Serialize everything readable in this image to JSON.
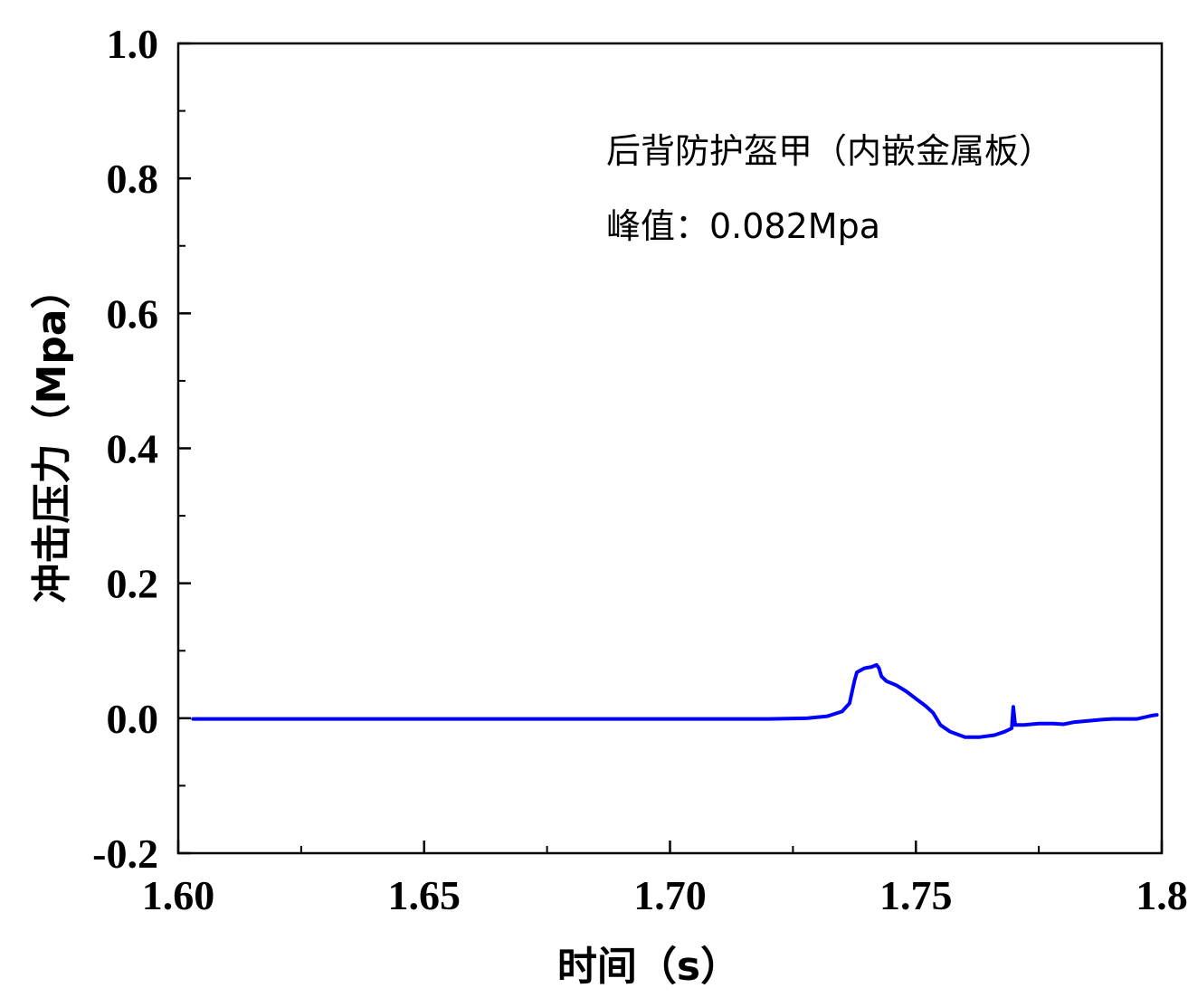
{
  "chart_data": {
    "type": "line",
    "title": "",
    "xlabel": "时间（s）",
    "ylabel": "冲击压力（Mpa）",
    "xlim": [
      1.6,
      1.8
    ],
    "ylim": [
      -0.2,
      1.0
    ],
    "xticks": [
      1.6,
      1.65,
      1.7,
      1.75,
      1.8
    ],
    "xtick_labels": [
      "1.60",
      "1.65",
      "1.70",
      "1.75",
      "1.8"
    ],
    "yticks": [
      -0.2,
      0.0,
      0.2,
      0.4,
      0.6,
      0.8,
      1.0
    ],
    "ytick_labels": [
      "-0.2",
      "0.0",
      "0.2",
      "0.4",
      "0.6",
      "0.8",
      "1.0"
    ],
    "grid": false,
    "legend": "none",
    "annotations": [
      "后背防护盔甲（内嵌金属板）",
      "峰值：0.082Mpa"
    ],
    "series": [
      {
        "color": "#0000ff",
        "points": [
          [
            1.603,
            -0.001
          ],
          [
            1.61,
            -0.001
          ],
          [
            1.62,
            -0.001
          ],
          [
            1.63,
            -0.001
          ],
          [
            1.64,
            -0.001
          ],
          [
            1.65,
            -0.001
          ],
          [
            1.66,
            -0.001
          ],
          [
            1.67,
            -0.001
          ],
          [
            1.68,
            -0.001
          ],
          [
            1.69,
            -0.001
          ],
          [
            1.7,
            -0.001
          ],
          [
            1.71,
            -0.001
          ],
          [
            1.72,
            -0.001
          ],
          [
            1.728,
            0.0
          ],
          [
            1.732,
            0.003
          ],
          [
            1.735,
            0.01
          ],
          [
            1.7365,
            0.022
          ],
          [
            1.7375,
            0.055
          ],
          [
            1.738,
            0.068
          ],
          [
            1.7395,
            0.074
          ],
          [
            1.741,
            0.076
          ],
          [
            1.742,
            0.079
          ],
          [
            1.7425,
            0.074
          ],
          [
            1.743,
            0.062
          ],
          [
            1.744,
            0.055
          ],
          [
            1.746,
            0.049
          ],
          [
            1.748,
            0.04
          ],
          [
            1.75,
            0.029
          ],
          [
            1.752,
            0.018
          ],
          [
            1.7535,
            0.008
          ],
          [
            1.755,
            -0.01
          ],
          [
            1.757,
            -0.02
          ],
          [
            1.76,
            -0.028
          ],
          [
            1.763,
            -0.028
          ],
          [
            1.766,
            -0.025
          ],
          [
            1.768,
            -0.02
          ],
          [
            1.7695,
            -0.015
          ],
          [
            1.7698,
            0.017
          ],
          [
            1.7702,
            -0.01
          ],
          [
            1.772,
            -0.01
          ],
          [
            1.775,
            -0.008
          ],
          [
            1.778,
            -0.008
          ],
          [
            1.78,
            -0.009
          ],
          [
            1.782,
            -0.006
          ],
          [
            1.785,
            -0.004
          ],
          [
            1.788,
            -0.002
          ],
          [
            1.79,
            -0.001
          ],
          [
            1.795,
            -0.001
          ],
          [
            1.798,
            0.004
          ],
          [
            1.799,
            0.005
          ]
        ]
      }
    ]
  }
}
